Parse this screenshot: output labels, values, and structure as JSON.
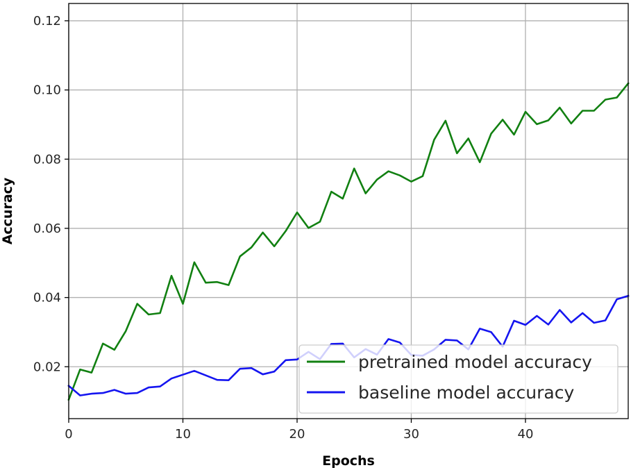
{
  "chart_data": {
    "type": "line",
    "title": "",
    "xlabel": "Epochs",
    "ylabel": "Accuracy",
    "xlim": [
      0,
      49
    ],
    "ylim": [
      0.005,
      0.125
    ],
    "grid": true,
    "legend_position": "lower-right",
    "x_ticks": [
      0,
      10,
      20,
      30,
      40
    ],
    "x_tick_labels": [
      "0",
      "10",
      "20",
      "30",
      "40"
    ],
    "y_ticks": [
      0.02,
      0.04,
      0.06,
      0.08,
      0.1,
      0.12
    ],
    "y_tick_labels": [
      "0.02",
      "0.04",
      "0.06",
      "0.08",
      "0.10",
      "0.12"
    ],
    "x": [
      0,
      1,
      2,
      3,
      4,
      5,
      6,
      7,
      8,
      9,
      10,
      11,
      12,
      13,
      14,
      15,
      16,
      17,
      18,
      19,
      20,
      21,
      22,
      23,
      24,
      25,
      26,
      27,
      28,
      29,
      30,
      31,
      32,
      33,
      34,
      35,
      36,
      37,
      38,
      39,
      40,
      41,
      42,
      43,
      44,
      45,
      46,
      47,
      48,
      49
    ],
    "series": [
      {
        "name": "pretrained model accuracy",
        "color": "#118011",
        "values": [
          0.0105,
          0.0192,
          0.0183,
          0.0267,
          0.0249,
          0.0303,
          0.0382,
          0.0351,
          0.0355,
          0.0463,
          0.0382,
          0.0502,
          0.0443,
          0.0445,
          0.0436,
          0.0519,
          0.0545,
          0.0588,
          0.0548,
          0.0592,
          0.0646,
          0.0601,
          0.0619,
          0.0706,
          0.0686,
          0.0773,
          0.0701,
          0.0741,
          0.0765,
          0.0753,
          0.0735,
          0.0751,
          0.0856,
          0.0911,
          0.0817,
          0.086,
          0.0791,
          0.0874,
          0.0914,
          0.0871,
          0.0937,
          0.0901,
          0.0912,
          0.0949,
          0.0903,
          0.094,
          0.094,
          0.0972,
          0.0978,
          0.1019
        ]
      },
      {
        "name": "baseline model accuracy",
        "color": "#1515f0",
        "values": [
          0.0145,
          0.0117,
          0.0122,
          0.0124,
          0.0133,
          0.0122,
          0.0124,
          0.014,
          0.0143,
          0.0166,
          0.0177,
          0.0188,
          0.0175,
          0.0162,
          0.0161,
          0.0194,
          0.0196,
          0.0178,
          0.0186,
          0.0219,
          0.0221,
          0.0243,
          0.0222,
          0.0266,
          0.0267,
          0.0227,
          0.0251,
          0.0235,
          0.028,
          0.027,
          0.0234,
          0.0232,
          0.025,
          0.0278,
          0.0276,
          0.025,
          0.031,
          0.03,
          0.0258,
          0.0333,
          0.0321,
          0.0347,
          0.0322,
          0.0364,
          0.0328,
          0.0355,
          0.0327,
          0.0334,
          0.0395,
          0.0405
        ]
      }
    ]
  }
}
